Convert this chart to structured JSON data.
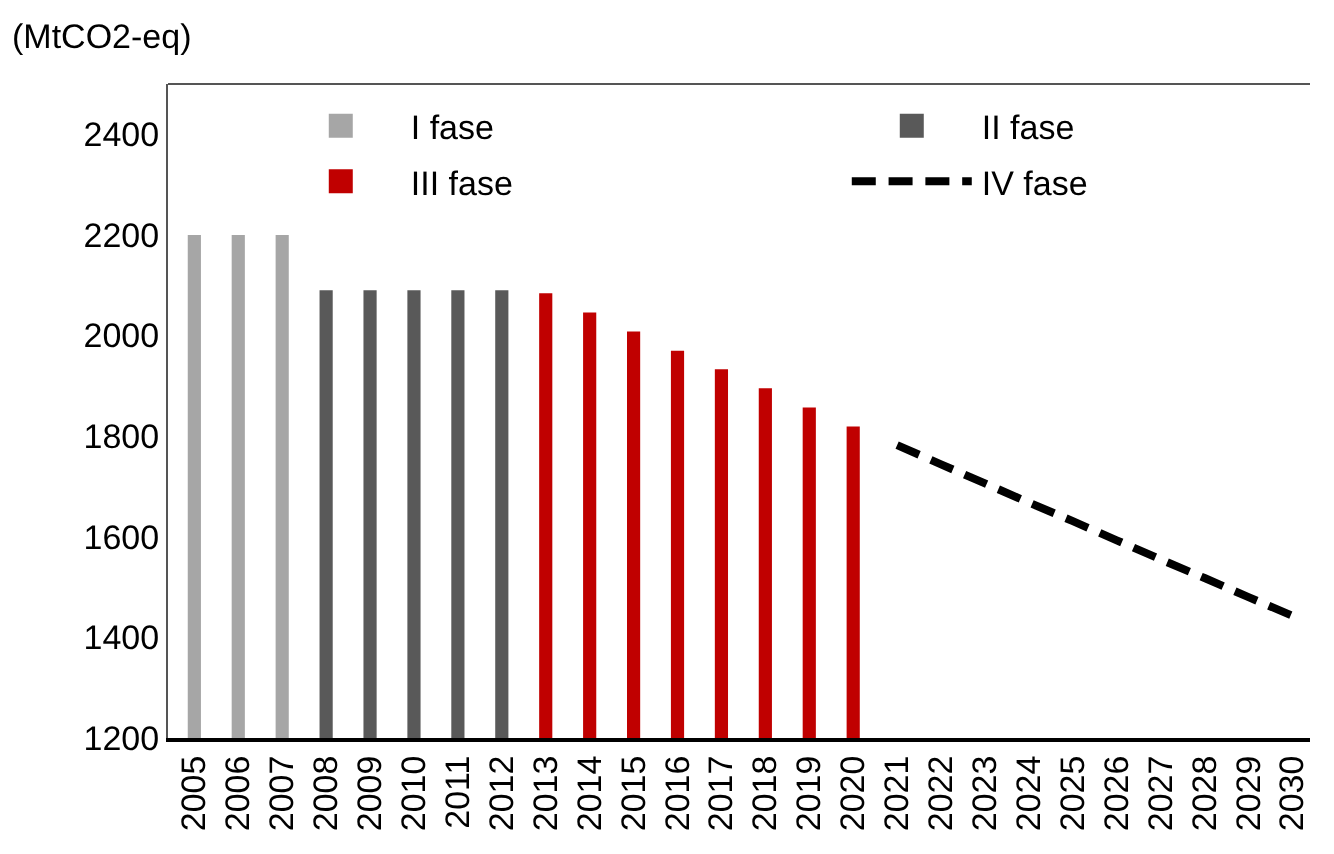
{
  "chart_data": {
    "type": "bar",
    "ylabel": "(MtCO2-eq)",
    "categories": [
      "2005",
      "2006",
      "2007",
      "2008",
      "2009",
      "2010",
      "2011",
      "2012",
      "2013",
      "2014",
      "2015",
      "2016",
      "2017",
      "2018",
      "2019",
      "2020",
      "2021",
      "2022",
      "2023",
      "2024",
      "2025",
      "2026",
      "2027",
      "2028",
      "2029",
      "2030"
    ],
    "series": [
      {
        "name": "I fase",
        "color": "#a6a6a6",
        "values": [
          2200,
          2200,
          2200,
          null,
          null,
          null,
          null,
          null,
          null,
          null,
          null,
          null,
          null,
          null,
          null,
          null,
          null,
          null,
          null,
          null,
          null,
          null,
          null,
          null,
          null,
          null
        ]
      },
      {
        "name": "II fase",
        "color": "#595959",
        "values": [
          null,
          null,
          null,
          2090,
          2090,
          2090,
          2090,
          2090,
          null,
          null,
          null,
          null,
          null,
          null,
          null,
          null,
          null,
          null,
          null,
          null,
          null,
          null,
          null,
          null,
          null,
          null
        ]
      },
      {
        "name": "III fase",
        "color": "#c00000",
        "values": [
          null,
          null,
          null,
          null,
          null,
          null,
          null,
          null,
          2084,
          2046,
          2008,
          1970,
          1933,
          1895,
          1857,
          1819,
          null,
          null,
          null,
          null,
          null,
          null,
          null,
          null,
          null,
          null
        ]
      },
      {
        "name": "IV fase",
        "color": "#000000",
        "type": "line",
        "line_style": "dashed",
        "values": [
          null,
          null,
          null,
          null,
          null,
          null,
          null,
          null,
          null,
          null,
          null,
          null,
          null,
          null,
          null,
          null,
          1782,
          1744,
          1706,
          1668,
          1631,
          1593,
          1555,
          1518,
          1480,
          1443
        ]
      }
    ],
    "ylim": [
      1200,
      2500
    ],
    "yticks": [
      1200,
      1400,
      1600,
      1800,
      2000,
      2200,
      2400
    ],
    "grid": false,
    "legend": "top"
  }
}
